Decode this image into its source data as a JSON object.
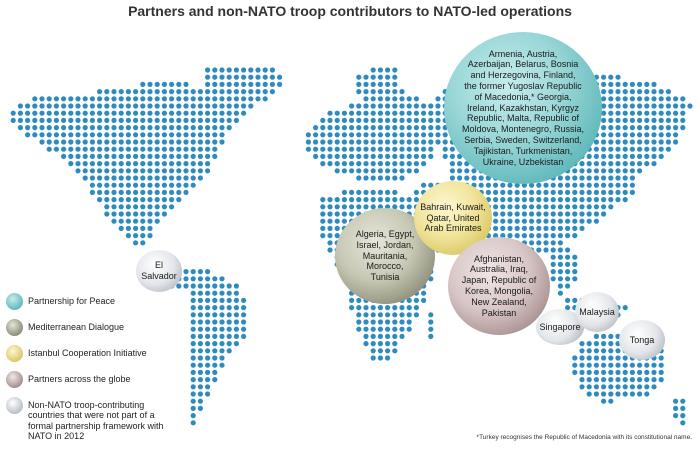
{
  "title": "Partners and non-NATO troop contributors to NATO-led operations",
  "colors": {
    "dots": "#2e8bc0",
    "partnership_for_peace": "#3aa5a8",
    "mediterranean_dialogue": "#6a6a56",
    "istanbul_cooperation_initiative": "#cbb541",
    "partners_across_the_globe": "#8a6e6e",
    "non_nato_contributors": "#9fa6ad"
  },
  "bubbles": {
    "partnership_for_peace": [
      "Armenia, Austria,",
      "Azerbaijan, Belarus, Bosnia",
      "and Herzegovina, Finland,",
      "the former Yugoslav Republic",
      "of Macedonia,* Georgia,",
      "Ireland, Kazakhstan, Kyrgyz",
      "Republic, Malta, Republic of",
      "Moldova, Montenegro, Russia,",
      "Serbia, Sweden, Switzerland,",
      "Tajikistan, Turkmenistan,",
      "Ukraine, Uzbekistan"
    ],
    "istanbul_cooperation_initiative": [
      "Bahrain, Kuwait,",
      "Qatar, United",
      "Arab Emirates"
    ],
    "mediterranean_dialogue": [
      "Algeria, Egypt,",
      "Israel, Jordan,",
      "Mauritania,",
      "Morocco,",
      "Tunisia"
    ],
    "partners_across_the_globe": [
      "Afghanistan,",
      "Australia, Iraq,",
      "Japan, Republic of",
      "Korea, Mongolia,",
      "New Zealand,",
      "Pakistan"
    ],
    "el_salvador": [
      "El",
      "Salvador"
    ],
    "singapore": [
      "Singapore"
    ],
    "malaysia": [
      "Malaysia"
    ],
    "tonga": [
      "Tonga"
    ]
  },
  "legend": [
    {
      "label": "Partnership for Peace",
      "color": "#3aa5a8"
    },
    {
      "label": "Mediterranean Dialogue",
      "color": "#6a6a56"
    },
    {
      "label": "Istanbul Cooperation Initiative",
      "color": "#cbb541"
    },
    {
      "label": "Partners across the globe",
      "color": "#8a6e6e"
    },
    {
      "label": "Non-NATO troop-contributing countries that were not part of a formal partnership framework with NATO in 2012",
      "color": "#9fa6ad"
    }
  ],
  "footnote": "*Turkey recognises the Republic of Macedonia with its constitutional name."
}
